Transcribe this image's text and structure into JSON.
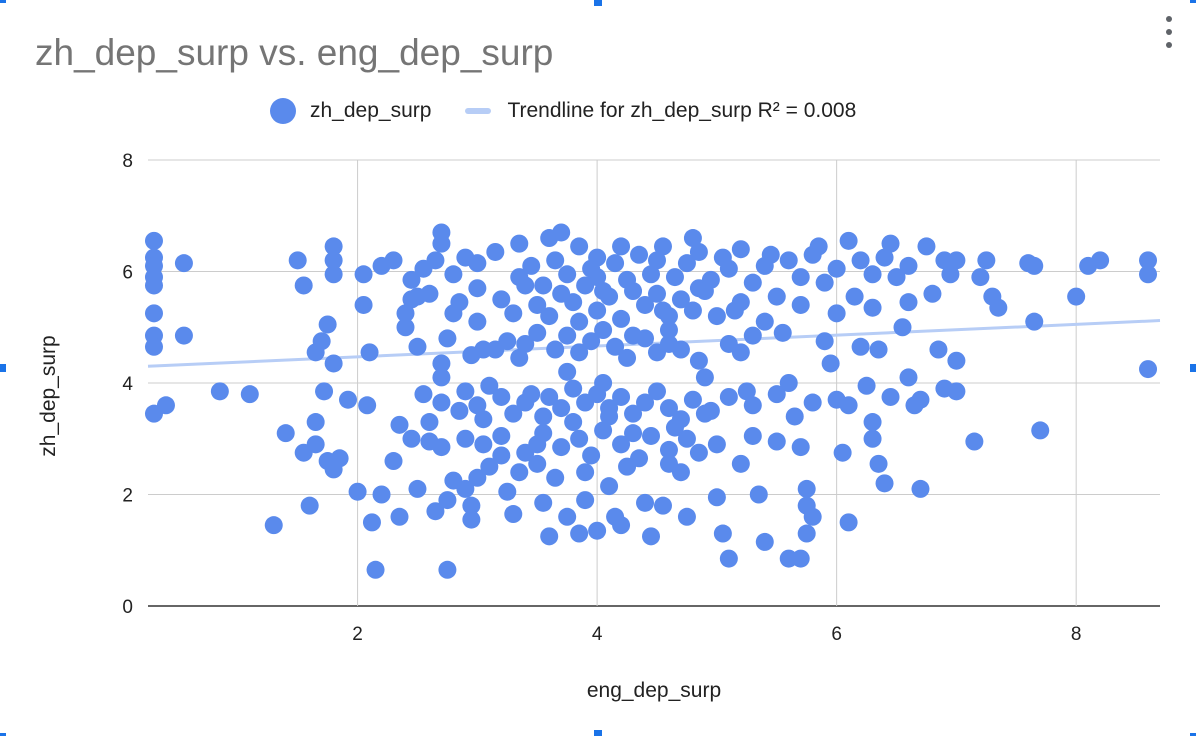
{
  "chart_data": {
    "type": "scatter",
    "title": "zh_dep_surp vs. eng_dep_surp",
    "xlabel": "eng_dep_surp",
    "ylabel": "zh_dep_surp",
    "xlim": [
      0.25,
      8.7
    ],
    "ylim": [
      0,
      8
    ],
    "xticks": [
      "2",
      "4",
      "6",
      "8"
    ],
    "yticks": [
      "0",
      "2",
      "4",
      "6",
      "8"
    ],
    "grid": true,
    "legend_position": "top",
    "series": [
      {
        "name": "zh_dep_surp",
        "color": "#5a8aec",
        "points": [
          [
            0.3,
            6.55
          ],
          [
            0.3,
            6.25
          ],
          [
            0.3,
            6.1
          ],
          [
            0.3,
            5.9
          ],
          [
            0.3,
            5.75
          ],
          [
            0.3,
            5.25
          ],
          [
            0.3,
            4.85
          ],
          [
            0.3,
            4.65
          ],
          [
            0.3,
            3.45
          ],
          [
            0.4,
            3.6
          ],
          [
            0.55,
            6.15
          ],
          [
            0.55,
            4.85
          ],
          [
            0.85,
            3.85
          ],
          [
            1.1,
            3.8
          ],
          [
            1.3,
            1.45
          ],
          [
            1.4,
            3.1
          ],
          [
            1.5,
            6.2
          ],
          [
            1.55,
            5.75
          ],
          [
            1.55,
            2.75
          ],
          [
            1.6,
            1.8
          ],
          [
            1.65,
            4.55
          ],
          [
            1.65,
            3.3
          ],
          [
            1.65,
            2.9
          ],
          [
            1.7,
            4.75
          ],
          [
            1.72,
            3.85
          ],
          [
            1.75,
            5.05
          ],
          [
            1.75,
            2.6
          ],
          [
            1.8,
            6.45
          ],
          [
            1.8,
            6.2
          ],
          [
            1.8,
            5.95
          ],
          [
            1.8,
            4.35
          ],
          [
            1.8,
            2.45
          ],
          [
            1.85,
            2.65
          ],
          [
            1.92,
            3.7
          ],
          [
            2.0,
            2.05
          ],
          [
            2.05,
            5.95
          ],
          [
            2.05,
            5.4
          ],
          [
            2.08,
            3.6
          ],
          [
            2.1,
            4.55
          ],
          [
            2.12,
            1.5
          ],
          [
            2.15,
            0.65
          ],
          [
            2.2,
            2.0
          ],
          [
            2.3,
            6.2
          ],
          [
            2.3,
            2.6
          ],
          [
            2.35,
            3.25
          ],
          [
            2.35,
            1.6
          ],
          [
            2.4,
            5.0
          ],
          [
            2.4,
            5.25
          ],
          [
            2.45,
            5.5
          ],
          [
            2.5,
            5.55
          ],
          [
            2.55,
            3.8
          ],
          [
            2.6,
            3.3
          ],
          [
            2.6,
            2.95
          ],
          [
            2.65,
            6.2
          ],
          [
            2.7,
            6.5
          ],
          [
            2.7,
            6.7
          ],
          [
            2.7,
            4.35
          ],
          [
            2.7,
            4.1
          ],
          [
            2.7,
            3.65
          ],
          [
            2.75,
            1.9
          ],
          [
            2.75,
            0.65
          ],
          [
            2.8,
            5.25
          ],
          [
            2.85,
            3.5
          ],
          [
            2.9,
            3.0
          ],
          [
            2.9,
            2.1
          ],
          [
            2.95,
            1.8
          ],
          [
            3.0,
            6.15
          ],
          [
            3.0,
            5.1
          ],
          [
            3.05,
            4.6
          ],
          [
            3.05,
            3.35
          ],
          [
            3.1,
            3.95
          ],
          [
            3.15,
            4.6
          ],
          [
            3.2,
            2.7
          ],
          [
            3.25,
            2.05
          ],
          [
            3.3,
            1.65
          ],
          [
            3.35,
            5.9
          ],
          [
            3.35,
            6.5
          ],
          [
            3.4,
            4.7
          ],
          [
            3.45,
            3.8
          ],
          [
            3.5,
            2.9
          ],
          [
            3.55,
            1.85
          ],
          [
            3.6,
            1.25
          ],
          [
            3.6,
            6.6
          ],
          [
            3.7,
            6.7
          ],
          [
            3.75,
            4.2
          ],
          [
            3.8,
            3.9
          ],
          [
            3.85,
            5.1
          ],
          [
            3.9,
            2.4
          ],
          [
            3.9,
            1.9
          ],
          [
            4.0,
            6.25
          ],
          [
            4.0,
            5.9
          ],
          [
            4.05,
            4.0
          ],
          [
            4.1,
            3.4
          ],
          [
            4.1,
            2.15
          ],
          [
            4.15,
            1.6
          ],
          [
            4.2,
            1.45
          ],
          [
            4.2,
            6.45
          ],
          [
            4.25,
            5.85
          ],
          [
            4.3,
            4.85
          ],
          [
            4.3,
            3.1
          ],
          [
            4.35,
            2.65
          ],
          [
            4.4,
            1.85
          ],
          [
            4.45,
            1.25
          ],
          [
            4.5,
            6.2
          ],
          [
            4.55,
            5.3
          ],
          [
            4.6,
            4.7
          ],
          [
            4.65,
            3.2
          ],
          [
            4.7,
            2.4
          ],
          [
            4.75,
            1.6
          ],
          [
            4.8,
            6.6
          ],
          [
            4.85,
            5.7
          ],
          [
            4.9,
            4.1
          ],
          [
            4.95,
            3.5
          ],
          [
            5.0,
            2.9
          ],
          [
            5.0,
            1.95
          ],
          [
            5.05,
            1.3
          ],
          [
            5.1,
            6.05
          ],
          [
            5.15,
            5.3
          ],
          [
            5.2,
            4.55
          ],
          [
            5.25,
            3.85
          ],
          [
            5.3,
            3.05
          ],
          [
            5.35,
            2.0
          ],
          [
            5.4,
            1.15
          ],
          [
            5.45,
            6.3
          ],
          [
            5.5,
            5.55
          ],
          [
            5.55,
            4.9
          ],
          [
            5.6,
            4.0
          ],
          [
            5.65,
            3.4
          ],
          [
            5.7,
            2.85
          ],
          [
            5.75,
            2.1
          ],
          [
            5.8,
            1.6
          ],
          [
            5.85,
            6.45
          ],
          [
            5.9,
            5.8
          ],
          [
            5.95,
            4.35
          ],
          [
            6.0,
            3.7
          ],
          [
            6.05,
            2.75
          ],
          [
            6.1,
            1.5
          ],
          [
            6.1,
            6.55
          ],
          [
            6.15,
            5.55
          ],
          [
            6.2,
            4.65
          ],
          [
            6.25,
            3.95
          ],
          [
            6.3,
            3.3
          ],
          [
            6.35,
            2.55
          ],
          [
            6.4,
            2.2
          ],
          [
            6.45,
            6.5
          ],
          [
            6.5,
            5.9
          ],
          [
            6.55,
            5.0
          ],
          [
            6.6,
            4.1
          ],
          [
            6.65,
            3.6
          ],
          [
            6.7,
            2.1
          ],
          [
            6.75,
            6.45
          ],
          [
            6.8,
            5.6
          ],
          [
            6.85,
            4.6
          ],
          [
            6.9,
            3.9
          ],
          [
            6.95,
            5.95
          ],
          [
            7.0,
            6.2
          ],
          [
            7.0,
            4.4
          ],
          [
            7.0,
            3.85
          ],
          [
            7.15,
            2.95
          ],
          [
            7.2,
            5.9
          ],
          [
            7.25,
            6.2
          ],
          [
            7.3,
            5.55
          ],
          [
            7.35,
            5.35
          ],
          [
            7.6,
            6.15
          ],
          [
            7.65,
            6.1
          ],
          [
            7.65,
            5.1
          ],
          [
            7.7,
            3.15
          ],
          [
            8.0,
            5.55
          ],
          [
            8.1,
            6.1
          ],
          [
            8.2,
            6.2
          ],
          [
            8.6,
            6.2
          ],
          [
            8.6,
            5.95
          ],
          [
            8.6,
            4.25
          ],
          [
            2.2,
            6.1
          ],
          [
            2.45,
            5.85
          ],
          [
            2.55,
            6.05
          ],
          [
            2.8,
            5.95
          ],
          [
            2.9,
            6.25
          ],
          [
            3.15,
            6.35
          ],
          [
            3.45,
            6.1
          ],
          [
            3.55,
            5.75
          ],
          [
            3.65,
            6.2
          ],
          [
            3.75,
            5.95
          ],
          [
            3.85,
            6.45
          ],
          [
            3.95,
            6.05
          ],
          [
            4.05,
            5.65
          ],
          [
            4.15,
            6.15
          ],
          [
            4.35,
            6.3
          ],
          [
            4.45,
            5.95
          ],
          [
            4.55,
            6.45
          ],
          [
            4.65,
            5.9
          ],
          [
            4.75,
            6.15
          ],
          [
            4.85,
            6.35
          ],
          [
            4.95,
            5.85
          ],
          [
            5.05,
            6.25
          ],
          [
            5.2,
            6.4
          ],
          [
            5.3,
            5.8
          ],
          [
            5.4,
            6.1
          ],
          [
            5.6,
            6.2
          ],
          [
            5.7,
            5.9
          ],
          [
            5.8,
            6.3
          ],
          [
            6.0,
            6.05
          ],
          [
            6.2,
            6.2
          ],
          [
            6.3,
            5.95
          ],
          [
            6.4,
            6.25
          ],
          [
            6.6,
            6.1
          ],
          [
            6.9,
            6.2
          ],
          [
            2.6,
            5.6
          ],
          [
            2.85,
            5.45
          ],
          [
            3.0,
            5.7
          ],
          [
            3.2,
            5.5
          ],
          [
            3.3,
            5.25
          ],
          [
            3.4,
            5.75
          ],
          [
            3.5,
            5.4
          ],
          [
            3.6,
            5.2
          ],
          [
            3.7,
            5.6
          ],
          [
            3.8,
            5.45
          ],
          [
            3.9,
            5.75
          ],
          [
            4.0,
            5.3
          ],
          [
            4.1,
            5.55
          ],
          [
            4.2,
            5.15
          ],
          [
            4.3,
            5.65
          ],
          [
            4.4,
            5.4
          ],
          [
            4.5,
            5.6
          ],
          [
            4.6,
            5.2
          ],
          [
            4.7,
            5.5
          ],
          [
            4.8,
            5.3
          ],
          [
            4.9,
            5.65
          ],
          [
            5.0,
            5.2
          ],
          [
            5.2,
            5.45
          ],
          [
            5.4,
            5.1
          ],
          [
            5.7,
            5.4
          ],
          [
            6.0,
            5.25
          ],
          [
            6.3,
            5.35
          ],
          [
            6.6,
            5.45
          ],
          [
            2.5,
            4.65
          ],
          [
            2.75,
            4.8
          ],
          [
            2.95,
            4.5
          ],
          [
            3.25,
            4.75
          ],
          [
            3.35,
            4.45
          ],
          [
            3.5,
            4.9
          ],
          [
            3.65,
            4.6
          ],
          [
            3.75,
            4.85
          ],
          [
            3.85,
            4.55
          ],
          [
            3.95,
            4.75
          ],
          [
            4.05,
            4.95
          ],
          [
            4.15,
            4.65
          ],
          [
            4.25,
            4.45
          ],
          [
            4.4,
            4.8
          ],
          [
            4.5,
            4.55
          ],
          [
            4.6,
            4.95
          ],
          [
            4.7,
            4.6
          ],
          [
            4.85,
            4.4
          ],
          [
            5.1,
            4.7
          ],
          [
            5.3,
            4.85
          ],
          [
            5.9,
            4.75
          ],
          [
            6.35,
            4.6
          ],
          [
            2.9,
            3.85
          ],
          [
            3.0,
            3.6
          ],
          [
            3.2,
            3.75
          ],
          [
            3.3,
            3.45
          ],
          [
            3.4,
            3.65
          ],
          [
            3.55,
            3.4
          ],
          [
            3.6,
            3.75
          ],
          [
            3.7,
            3.55
          ],
          [
            3.8,
            3.3
          ],
          [
            3.9,
            3.65
          ],
          [
            4.0,
            3.8
          ],
          [
            4.1,
            3.55
          ],
          [
            4.2,
            3.75
          ],
          [
            4.3,
            3.45
          ],
          [
            4.4,
            3.65
          ],
          [
            4.5,
            3.85
          ],
          [
            4.6,
            3.55
          ],
          [
            4.7,
            3.35
          ],
          [
            4.8,
            3.7
          ],
          [
            4.9,
            3.45
          ],
          [
            5.1,
            3.75
          ],
          [
            5.3,
            3.6
          ],
          [
            5.5,
            3.8
          ],
          [
            5.8,
            3.65
          ],
          [
            6.1,
            3.6
          ],
          [
            6.45,
            3.75
          ],
          [
            6.7,
            3.7
          ],
          [
            2.45,
            3.0
          ],
          [
            2.7,
            2.85
          ],
          [
            3.05,
            2.9
          ],
          [
            3.2,
            3.05
          ],
          [
            3.4,
            2.75
          ],
          [
            3.55,
            3.1
          ],
          [
            3.7,
            2.85
          ],
          [
            3.85,
            3.0
          ],
          [
            3.95,
            2.7
          ],
          [
            4.05,
            3.15
          ],
          [
            4.2,
            2.9
          ],
          [
            4.45,
            3.05
          ],
          [
            4.6,
            2.8
          ],
          [
            4.75,
            3.0
          ],
          [
            4.85,
            2.75
          ],
          [
            5.5,
            2.95
          ],
          [
            6.3,
            3.0
          ],
          [
            2.5,
            2.1
          ],
          [
            2.8,
            2.25
          ],
          [
            3.0,
            2.3
          ],
          [
            3.1,
            2.5
          ],
          [
            3.35,
            2.4
          ],
          [
            3.5,
            2.55
          ],
          [
            3.65,
            2.3
          ],
          [
            4.25,
            2.5
          ],
          [
            4.6,
            2.55
          ],
          [
            5.2,
            2.55
          ],
          [
            5.75,
            1.8
          ],
          [
            5.75,
            1.3
          ],
          [
            2.65,
            1.7
          ],
          [
            2.95,
            1.55
          ],
          [
            3.75,
            1.6
          ],
          [
            3.85,
            1.3
          ],
          [
            4.0,
            1.35
          ],
          [
            4.55,
            1.8
          ],
          [
            5.1,
            0.85
          ],
          [
            5.6,
            0.85
          ],
          [
            5.7,
            0.85
          ]
        ]
      }
    ],
    "trendline": {
      "name": "Trendline for zh_dep_surp R² = 0.008",
      "color": "#b7cdf6",
      "start": [
        0.25,
        4.3
      ],
      "end": [
        8.7,
        5.12
      ]
    }
  }
}
